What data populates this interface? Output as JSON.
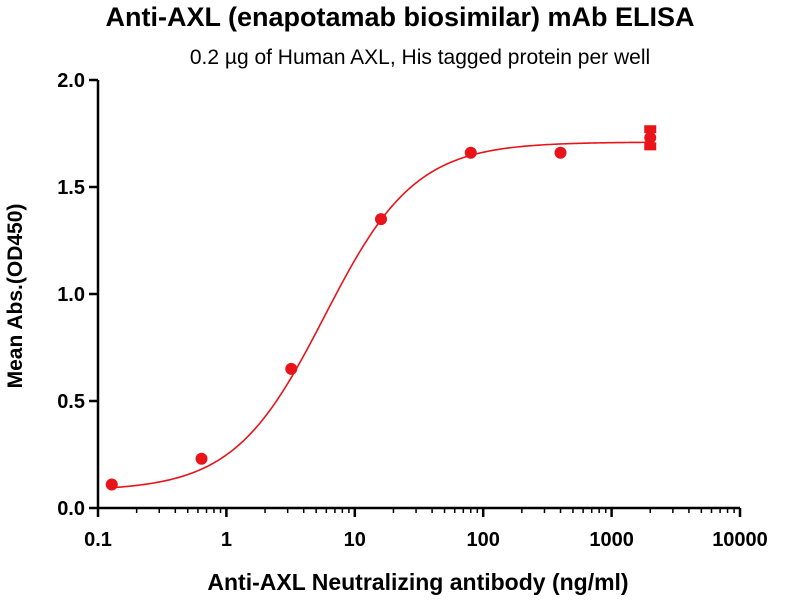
{
  "chart_data": {
    "type": "scatter",
    "title": "Anti-AXL (enapotamab biosimilar) mAb ELISA",
    "subtitle": "0.2 µg of Human AXL, His tagged protein per well",
    "xlabel": "Anti-AXL Neutralizing antibody (ng/ml)",
    "ylabel": "Mean Abs.(OD450)",
    "xscale": "log",
    "xlim": [
      0.1,
      10000
    ],
    "ylim": [
      0.0,
      2.0
    ],
    "x_ticks": [
      {
        "value": 0.1,
        "label": "0.1"
      },
      {
        "value": 1,
        "label": "1"
      },
      {
        "value": 10,
        "label": "10"
      },
      {
        "value": 100,
        "label": "100"
      },
      {
        "value": 1000,
        "label": "1000"
      },
      {
        "value": 10000,
        "label": "10000"
      }
    ],
    "y_ticks": [
      {
        "value": 0.0,
        "label": "0.0"
      },
      {
        "value": 0.5,
        "label": "0.5"
      },
      {
        "value": 1.0,
        "label": "1.0"
      },
      {
        "value": 1.5,
        "label": "1.5"
      },
      {
        "value": 2.0,
        "label": "2.0"
      }
    ],
    "grid": false,
    "color": "#e8141a",
    "series": [
      {
        "x": [
          0.128,
          0.64,
          3.2,
          16,
          80,
          400,
          2000
        ],
        "y": [
          0.11,
          0.23,
          0.65,
          1.35,
          1.66,
          1.66,
          1.73
        ],
        "error": [
          0,
          0,
          0,
          0,
          0,
          0,
          0.04
        ]
      }
    ],
    "fit": {
      "model": "4PL",
      "bottom": 0.08,
      "top": 1.71,
      "ec50": 5.8,
      "hill": 1.23,
      "x_range": [
        0.128,
        2000
      ]
    }
  }
}
